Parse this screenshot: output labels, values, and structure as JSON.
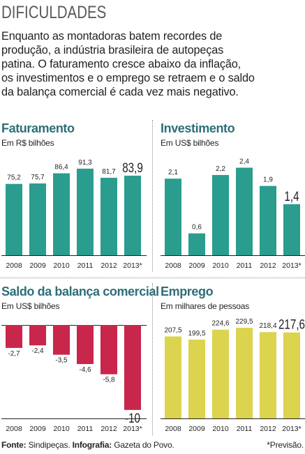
{
  "header": {
    "title": "DIFICULDADES",
    "intro_lines": [
      "Enquanto as montadoras batem recordes de",
      "produção, a indústria brasileira de autopeças",
      "patina. O faturamento cresce abaixo da inflação,",
      "os investimentos e o emprego se retraem e o saldo",
      "da balança comercial é cada vez mais negativo."
    ]
  },
  "chart_data": [
    {
      "type": "bar",
      "title": "Faturamento",
      "subtitle": "Em R$ bilhões",
      "categories": [
        "2008",
        "2009",
        "2010",
        "2011",
        "2012",
        "2013*"
      ],
      "values": [
        75.2,
        75.7,
        86.4,
        91.3,
        81.7,
        83.9
      ],
      "labels": [
        "75,2",
        "75,7",
        "86,4",
        "91,3",
        "81,7",
        "83,9"
      ],
      "ylim": [
        0,
        100
      ],
      "color": "#2a9d8f",
      "highlight_last": true
    },
    {
      "type": "bar",
      "title": "Investimento",
      "subtitle": "Em US$ bilhões",
      "categories": [
        "2008",
        "2009",
        "2010",
        "2011",
        "2012",
        "2013*"
      ],
      "values": [
        2.1,
        0.6,
        2.2,
        2.4,
        1.9,
        1.4
      ],
      "labels": [
        "2,1",
        "0,6",
        "2,2",
        "2,4",
        "1,9",
        "1,4"
      ],
      "ylim": [
        0,
        2.6
      ],
      "color": "#2a9d8f",
      "highlight_last": true
    },
    {
      "type": "bar",
      "title": "Saldo da balança comercial",
      "subtitle": "Em US$ bilhões",
      "categories": [
        "2008",
        "2009",
        "2010",
        "2011",
        "2012",
        "2013*"
      ],
      "values": [
        -2.7,
        -2.4,
        -3.5,
        -4.6,
        -5.8,
        -10
      ],
      "labels": [
        "-2,7",
        "-2,4",
        "-3,5",
        "-4,6",
        "-5,8",
        "-10"
      ],
      "ylim": [
        -11,
        0
      ],
      "color": "#c8264b",
      "highlight_last": true
    },
    {
      "type": "bar",
      "title": "Emprego",
      "subtitle": "Em milhares de pessoas",
      "categories": [
        "2008",
        "2009",
        "2010",
        "2011",
        "2012",
        "2013*"
      ],
      "values": [
        207.5,
        199.5,
        224.6,
        229.5,
        218.4,
        217.6
      ],
      "labels": [
        "207,5",
        "199,5",
        "224,6",
        "229,5",
        "218,4",
        "217,6"
      ],
      "ylim": [
        0,
        240
      ],
      "color": "#dcd34f",
      "highlight_last": true
    }
  ],
  "footer": {
    "source_label": "Fonte:",
    "source_value": "Sindipeças.",
    "infographic_label": "Infografia:",
    "infographic_value": "Gazeta do Povo.",
    "footnote": "*Previsão."
  }
}
